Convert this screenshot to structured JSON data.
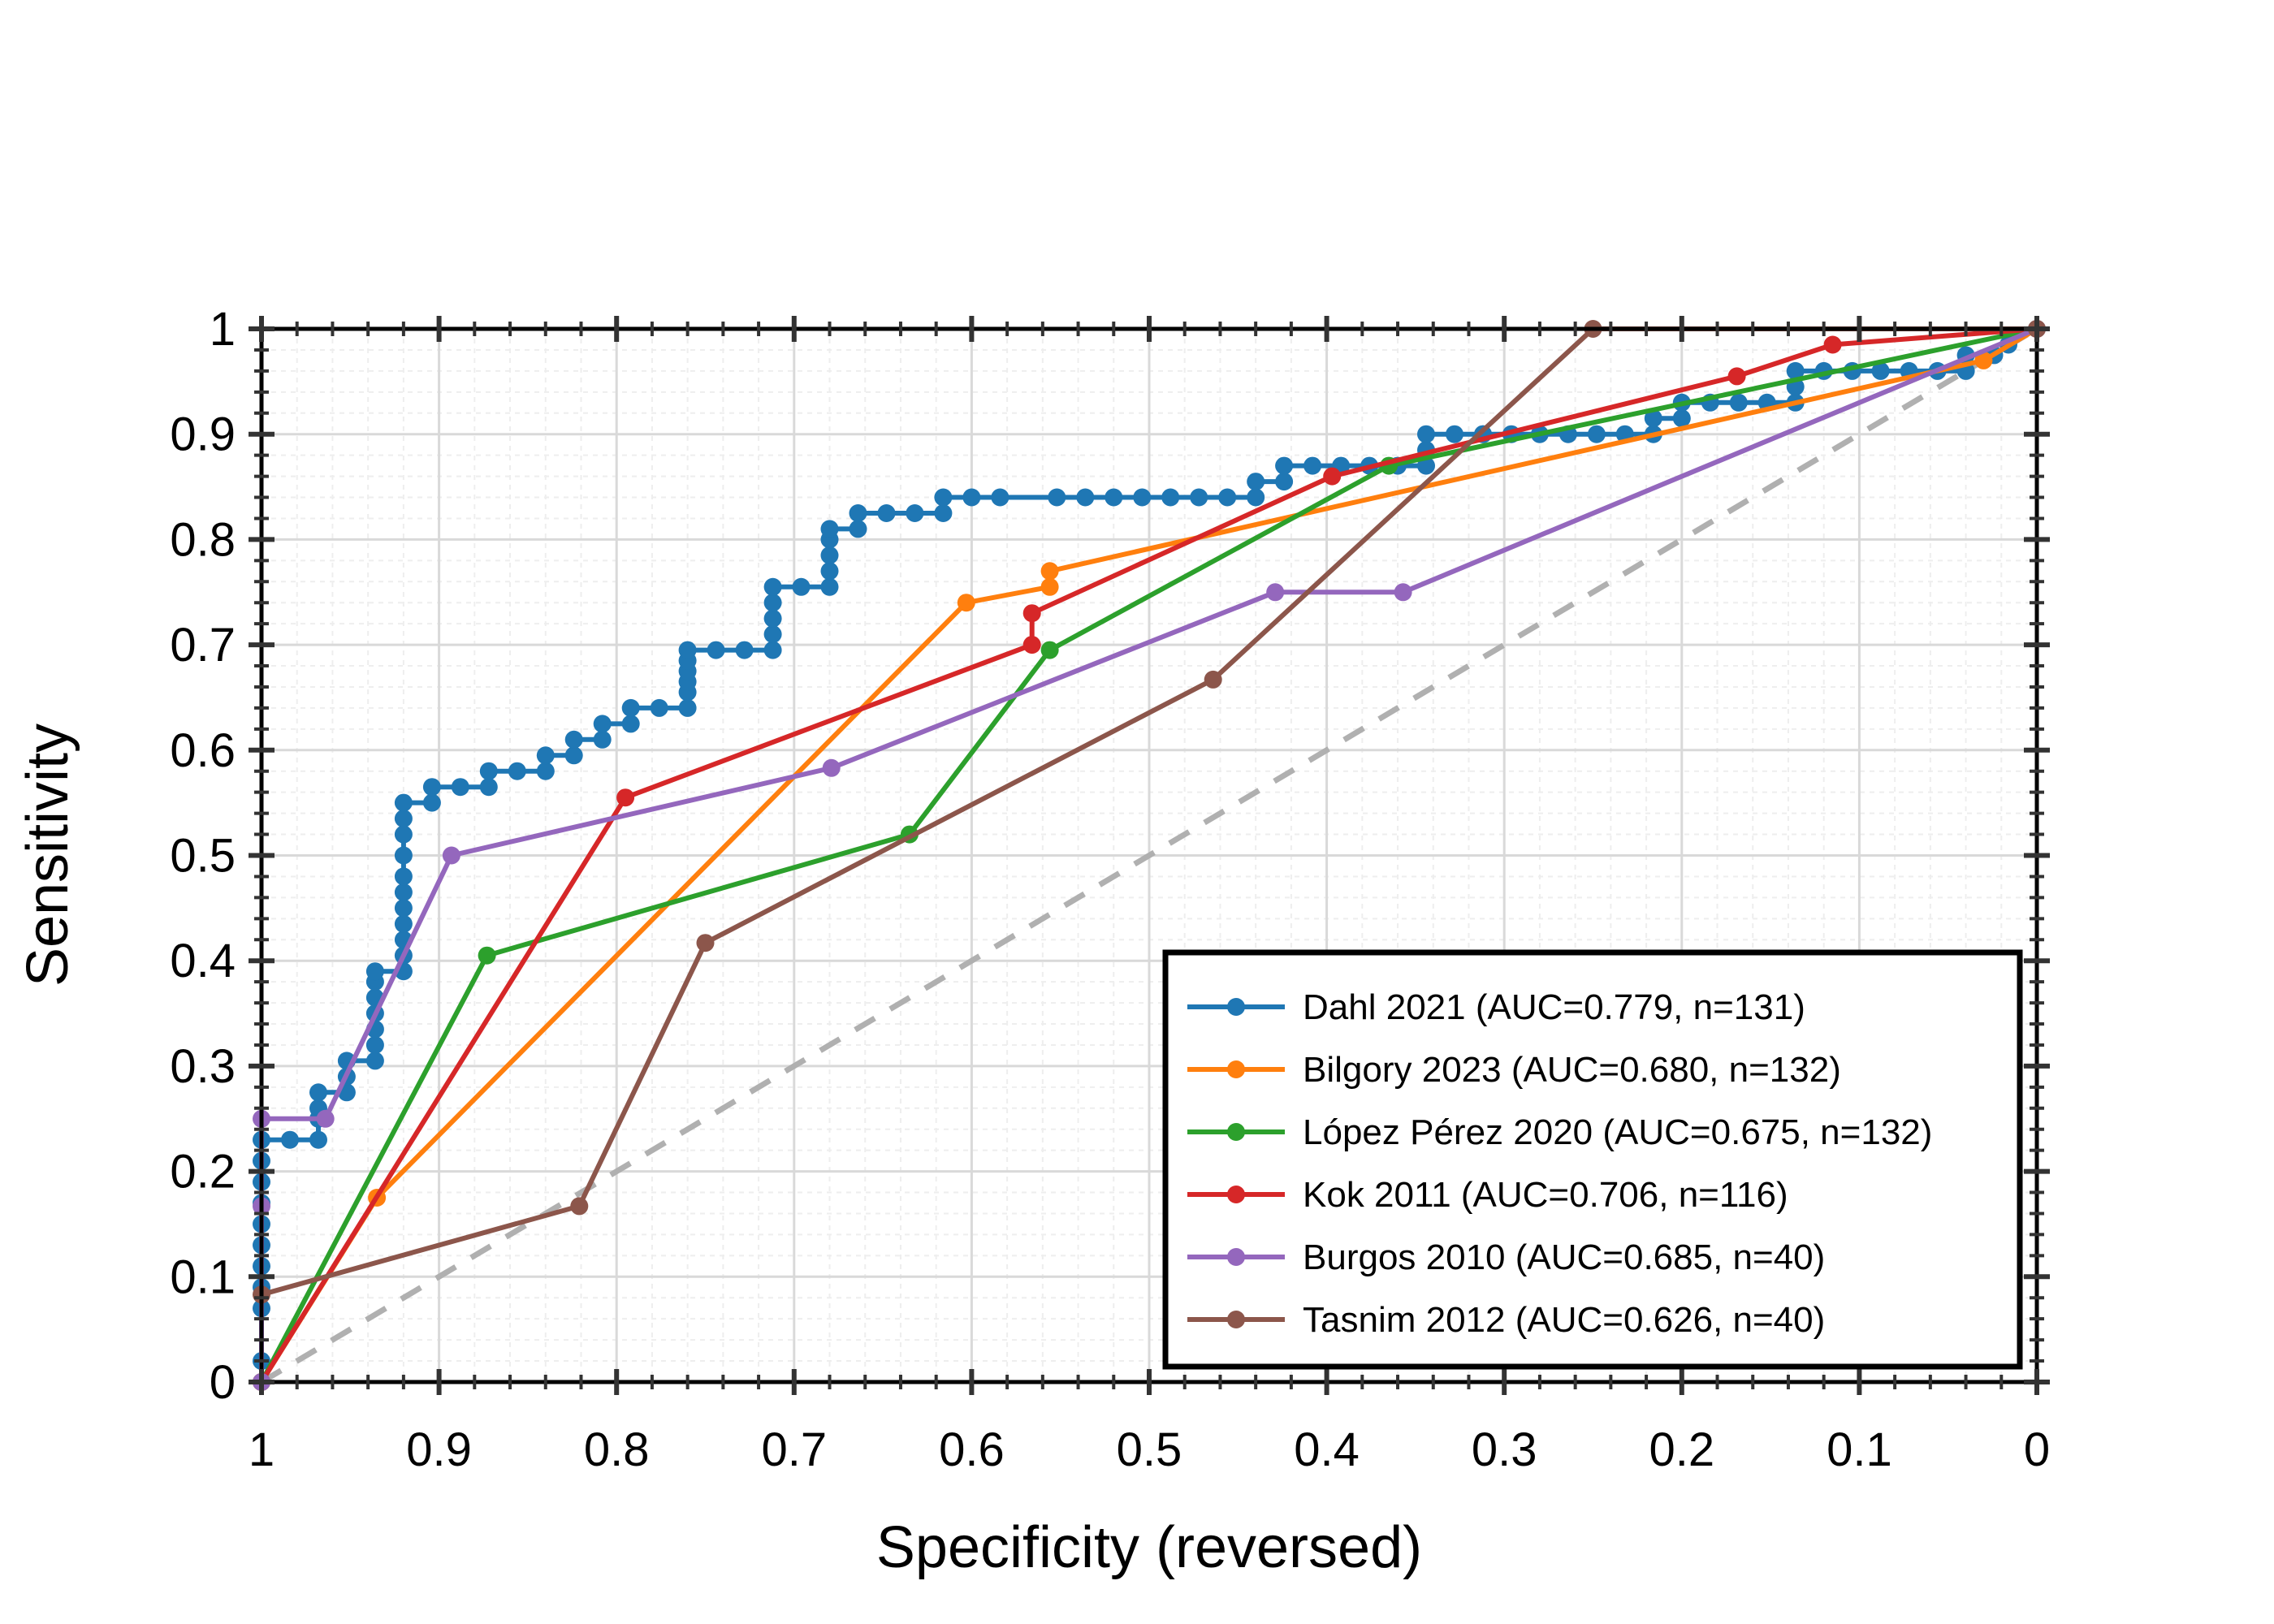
{
  "chart_data": {
    "type": "line",
    "title": "",
    "xlabel": "Specificity (reversed)",
    "ylabel": "Sensitivity",
    "x_reversed": true,
    "xlim": [
      1,
      0
    ],
    "ylim": [
      0,
      1
    ],
    "x_ticks": [
      "1",
      "0.9",
      "0.8",
      "0.7",
      "0.6",
      "0.5",
      "0.4",
      "0.3",
      "0.2",
      "0.1",
      "0"
    ],
    "y_ticks": [
      "0",
      "0.1",
      "0.2",
      "0.3",
      "0.4",
      "0.5",
      "0.6",
      "0.7",
      "0.8",
      "0.9",
      "1"
    ],
    "grid": true,
    "legend_position": "lower-right",
    "reference_line": {
      "style": "dashed",
      "color": "#b0b0b0",
      "from": [
        1,
        0
      ],
      "to": [
        0,
        1
      ]
    },
    "series": [
      {
        "name": "Dahl 2021 (AUC=0.779, n=131)",
        "color": "#1f77b4",
        "points": [
          [
            1,
            0
          ],
          [
            1,
            0.02
          ],
          [
            1,
            0.07
          ],
          [
            1,
            0.09
          ],
          [
            1,
            0.11
          ],
          [
            1,
            0.13
          ],
          [
            1,
            0.15
          ],
          [
            1,
            0.17
          ],
          [
            1,
            0.19
          ],
          [
            1,
            0.21
          ],
          [
            1,
            0.23
          ],
          [
            0.984,
            0.23
          ],
          [
            0.968,
            0.23
          ],
          [
            0.968,
            0.25
          ],
          [
            0.968,
            0.26
          ],
          [
            0.968,
            0.275
          ],
          [
            0.952,
            0.275
          ],
          [
            0.952,
            0.29
          ],
          [
            0.952,
            0.305
          ],
          [
            0.936,
            0.305
          ],
          [
            0.936,
            0.32
          ],
          [
            0.936,
            0.335
          ],
          [
            0.936,
            0.35
          ],
          [
            0.936,
            0.365
          ],
          [
            0.936,
            0.38
          ],
          [
            0.936,
            0.39
          ],
          [
            0.92,
            0.39
          ],
          [
            0.92,
            0.405
          ],
          [
            0.92,
            0.42
          ],
          [
            0.92,
            0.435
          ],
          [
            0.92,
            0.45
          ],
          [
            0.92,
            0.465
          ],
          [
            0.92,
            0.48
          ],
          [
            0.92,
            0.5
          ],
          [
            0.92,
            0.52
          ],
          [
            0.92,
            0.535
          ],
          [
            0.92,
            0.55
          ],
          [
            0.904,
            0.55
          ],
          [
            0.904,
            0.565
          ],
          [
            0.888,
            0.565
          ],
          [
            0.872,
            0.565
          ],
          [
            0.872,
            0.58
          ],
          [
            0.856,
            0.58
          ],
          [
            0.84,
            0.58
          ],
          [
            0.84,
            0.595
          ],
          [
            0.824,
            0.595
          ],
          [
            0.824,
            0.61
          ],
          [
            0.808,
            0.61
          ],
          [
            0.808,
            0.625
          ],
          [
            0.792,
            0.625
          ],
          [
            0.792,
            0.64
          ],
          [
            0.776,
            0.64
          ],
          [
            0.76,
            0.64
          ],
          [
            0.76,
            0.655
          ],
          [
            0.76,
            0.665
          ],
          [
            0.76,
            0.675
          ],
          [
            0.76,
            0.685
          ],
          [
            0.76,
            0.695
          ],
          [
            0.744,
            0.695
          ],
          [
            0.728,
            0.695
          ],
          [
            0.712,
            0.695
          ],
          [
            0.712,
            0.71
          ],
          [
            0.712,
            0.725
          ],
          [
            0.712,
            0.74
          ],
          [
            0.712,
            0.755
          ],
          [
            0.696,
            0.755
          ],
          [
            0.68,
            0.755
          ],
          [
            0.68,
            0.77
          ],
          [
            0.68,
            0.785
          ],
          [
            0.68,
            0.8
          ],
          [
            0.68,
            0.81
          ],
          [
            0.664,
            0.81
          ],
          [
            0.664,
            0.825
          ],
          [
            0.648,
            0.825
          ],
          [
            0.632,
            0.825
          ],
          [
            0.616,
            0.825
          ],
          [
            0.616,
            0.84
          ],
          [
            0.6,
            0.84
          ],
          [
            0.584,
            0.84
          ],
          [
            0.552,
            0.84
          ],
          [
            0.536,
            0.84
          ],
          [
            0.52,
            0.84
          ],
          [
            0.504,
            0.84
          ],
          [
            0.488,
            0.84
          ],
          [
            0.472,
            0.84
          ],
          [
            0.456,
            0.84
          ],
          [
            0.44,
            0.84
          ],
          [
            0.44,
            0.855
          ],
          [
            0.424,
            0.855
          ],
          [
            0.424,
            0.87
          ],
          [
            0.408,
            0.87
          ],
          [
            0.392,
            0.87
          ],
          [
            0.376,
            0.87
          ],
          [
            0.36,
            0.87
          ],
          [
            0.344,
            0.87
          ],
          [
            0.344,
            0.885
          ],
          [
            0.344,
            0.9
          ],
          [
            0.328,
            0.9
          ],
          [
            0.312,
            0.9
          ],
          [
            0.312,
            0.9
          ],
          [
            0.296,
            0.9
          ],
          [
            0.28,
            0.9
          ],
          [
            0.264,
            0.9
          ],
          [
            0.248,
            0.9
          ],
          [
            0.232,
            0.9
          ],
          [
            0.216,
            0.9
          ],
          [
            0.216,
            0.915
          ],
          [
            0.2,
            0.915
          ],
          [
            0.2,
            0.93
          ],
          [
            0.184,
            0.93
          ],
          [
            0.168,
            0.93
          ],
          [
            0.152,
            0.93
          ],
          [
            0.136,
            0.93
          ],
          [
            0.136,
            0.945
          ],
          [
            0.136,
            0.96
          ],
          [
            0.12,
            0.96
          ],
          [
            0.104,
            0.96
          ],
          [
            0.088,
            0.96
          ],
          [
            0.072,
            0.96
          ],
          [
            0.056,
            0.96
          ],
          [
            0.04,
            0.96
          ],
          [
            0.04,
            0.975
          ],
          [
            0.024,
            0.975
          ],
          [
            0.016,
            0.985
          ],
          [
            0,
            1
          ]
        ]
      },
      {
        "name": "Bilgory 2023 (AUC=0.680, n=132)",
        "color": "#ff7f0e",
        "points": [
          [
            1,
            0
          ],
          [
            0.935,
            0.175
          ],
          [
            0.603,
            0.74
          ],
          [
            0.556,
            0.755
          ],
          [
            0.556,
            0.77
          ],
          [
            0.03,
            0.97
          ],
          [
            0,
            1
          ]
        ]
      },
      {
        "name": "López Pérez 2020 (AUC=0.675, n=132)",
        "color": "#2ca02c",
        "points": [
          [
            1,
            0
          ],
          [
            0.873,
            0.405
          ],
          [
            0.635,
            0.52
          ],
          [
            0.556,
            0.695
          ],
          [
            0.365,
            0.87
          ],
          [
            0,
            1
          ]
        ]
      },
      {
        "name": "Kok 2011 (AUC=0.706, n=116)",
        "color": "#d62728",
        "points": [
          [
            1,
            0
          ],
          [
            0.795,
            0.555
          ],
          [
            0.566,
            0.7
          ],
          [
            0.566,
            0.73
          ],
          [
            0.397,
            0.86
          ],
          [
            0.169,
            0.955
          ],
          [
            0.115,
            0.985
          ],
          [
            0,
            1
          ]
        ]
      },
      {
        "name": "Burgos 2010 (AUC=0.685, n=40)",
        "color": "#9467bd",
        "points": [
          [
            1,
            0
          ],
          [
            1,
            0.167
          ],
          [
            1,
            0.25
          ],
          [
            0.964,
            0.25
          ],
          [
            0.893,
            0.5
          ],
          [
            0.679,
            0.583
          ],
          [
            0.429,
            0.75
          ],
          [
            0.357,
            0.75
          ],
          [
            0,
            1
          ]
        ]
      },
      {
        "name": "Tasnim 2012 (AUC=0.626, n=40)",
        "color": "#8c564b",
        "points": [
          [
            1,
            0.083
          ],
          [
            0.821,
            0.167
          ],
          [
            0.75,
            0.417
          ],
          [
            0.464,
            0.667
          ],
          [
            0.25,
            1
          ],
          [
            0,
            1
          ]
        ]
      }
    ]
  }
}
